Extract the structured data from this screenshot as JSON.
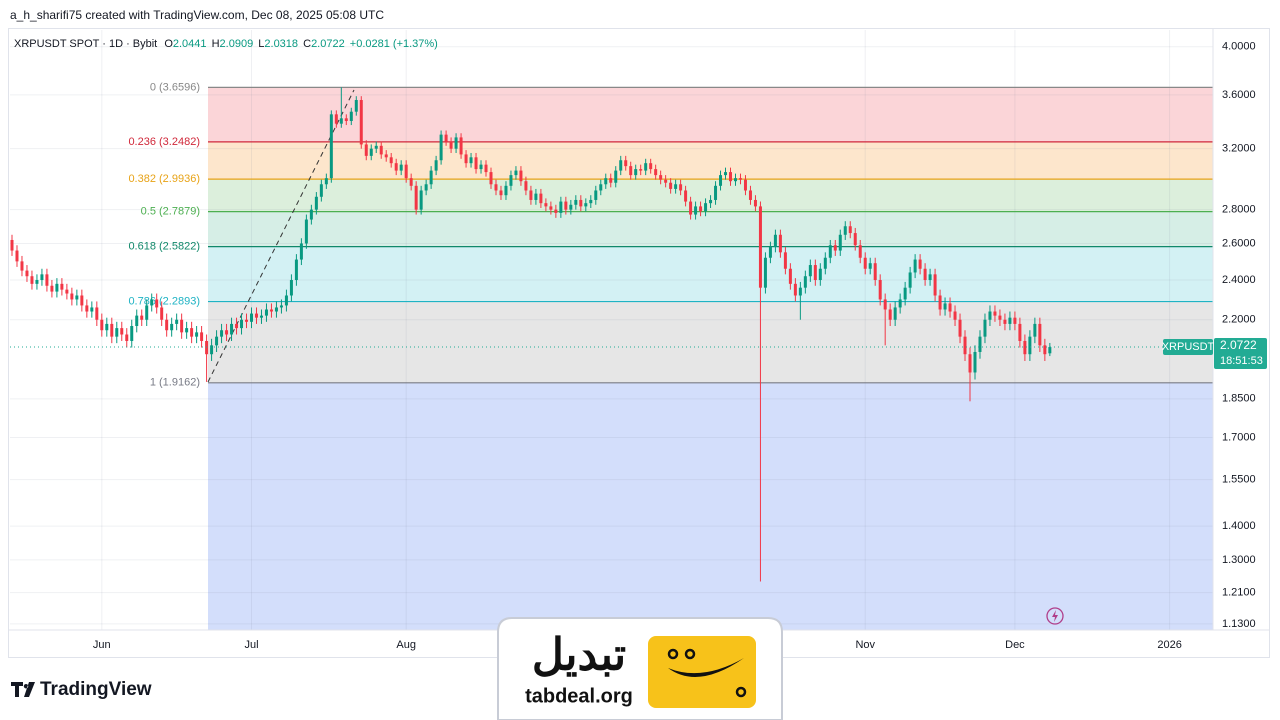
{
  "header": {
    "attribution": "a_h_sharifi75 created with TradingView.com, Dec 08, 2025 05:08 UTC"
  },
  "brand": "TradingView",
  "watermark": {
    "name": "تبدیل",
    "site": "tabdeal.org"
  },
  "chart_data": {
    "type": "candlestick",
    "title": "XRPUSDT SPOT · 1D · Bybit",
    "ohlc_labels": [
      "O",
      "H",
      "L",
      "C"
    ],
    "change": "+0.0281 (+1.37%)",
    "symbol_tag": "XRPUSDT",
    "countdown": "18:51:53",
    "up_color": "#089981",
    "down_color": "#f23645",
    "log_scale": true,
    "grid": true,
    "ylim": [
      1.115,
      4.15
    ],
    "yticks": [
      {
        "value": 4.0,
        "label": "4.0000"
      },
      {
        "value": 3.6,
        "label": "3.6000"
      },
      {
        "value": 3.2,
        "label": "3.2000"
      },
      {
        "value": 2.8,
        "label": "2.8000"
      },
      {
        "value": 2.6,
        "label": "2.6000"
      },
      {
        "value": 2.4,
        "label": "2.4000"
      },
      {
        "value": 2.2,
        "label": "2.2000"
      },
      {
        "value": 1.85,
        "label": "1.8500"
      },
      {
        "value": 1.7,
        "label": "1.7000"
      },
      {
        "value": 1.55,
        "label": "1.5500"
      },
      {
        "value": 1.4,
        "label": "1.4000"
      },
      {
        "value": 1.3,
        "label": "1.3000"
      },
      {
        "value": 1.21,
        "label": "1.2100"
      },
      {
        "value": 1.13,
        "label": "1.1300"
      }
    ],
    "xlim": [
      -0.4,
      240.7
    ],
    "xticks": [
      {
        "value": 18,
        "label": "Jun"
      },
      {
        "value": 48,
        "label": "Jul"
      },
      {
        "value": 79,
        "label": "Aug"
      },
      {
        "value": 171,
        "label": "Nov"
      },
      {
        "value": 201,
        "label": "Dec"
      },
      {
        "value": 232,
        "label": "2026"
      }
    ],
    "fib_levels": [
      {
        "value": 3.6596,
        "label": "0 (3.6596)",
        "line_color": "#888888",
        "fill": null
      },
      {
        "value": 3.2482,
        "label": "0.236 (3.2482)",
        "line_color": "#d0283a",
        "fill": "#fbd5d8"
      },
      {
        "value": 2.9936,
        "label": "0.382 (2.9936)",
        "line_color": "#e8a317",
        "fill": "#fde6cc"
      },
      {
        "value": 2.7879,
        "label": "0.5 (2.7879)",
        "line_color": "#4caf50",
        "fill": "#dcefdc"
      },
      {
        "value": 2.5822,
        "label": "0.618 (2.5822)",
        "line_color": "#11886a",
        "fill": "#d6eee6"
      },
      {
        "value": 2.2893,
        "label": "0.786 (2.2893)",
        "line_color": "#1fb3c4",
        "fill": "#d3f1f4"
      },
      {
        "value": 1.9162,
        "label": "1 (1.9162)",
        "line_color": "#787b86",
        "fill": "#e6e6e6"
      }
    ],
    "fib_extension_fill": "#d3defb",
    "open": [
      2.62,
      2.56,
      2.5,
      2.45,
      2.42,
      2.38,
      2.4,
      2.43,
      2.37,
      2.34,
      2.38,
      2.35,
      2.33,
      2.3,
      2.32,
      2.27,
      2.24,
      2.26,
      2.2,
      2.15,
      2.18,
      2.12,
      2.16,
      2.13,
      2.1,
      2.17,
      2.22,
      2.2,
      2.27,
      2.3,
      2.26,
      2.2,
      2.15,
      2.18,
      2.2,
      2.14,
      2.16,
      2.12,
      2.14,
      2.1,
      2.04,
      2.08,
      2.12,
      2.15,
      2.13,
      2.18,
      2.16,
      2.2,
      2.19,
      2.23,
      2.21,
      2.22,
      2.25,
      2.24,
      2.26,
      2.27,
      2.32,
      2.4,
      2.51,
      2.6,
      2.74,
      2.8,
      2.88,
      2.96,
      3.0,
      3.45,
      3.38,
      3.42,
      3.4,
      3.47,
      3.56,
      3.23,
      3.15,
      3.2,
      3.22,
      3.16,
      3.14,
      3.1,
      3.05,
      3.09,
      3.0,
      2.95,
      2.8,
      2.92,
      2.96,
      3.05,
      3.12,
      3.3,
      3.25,
      3.2,
      3.28,
      3.16,
      3.1,
      3.14,
      3.06,
      3.09,
      3.04,
      2.96,
      2.92,
      2.89,
      2.95,
      3.02,
      3.05,
      2.98,
      2.92,
      2.86,
      2.9,
      2.84,
      2.82,
      2.8,
      2.78,
      2.85,
      2.8,
      2.83,
      2.86,
      2.82,
      2.84,
      2.86,
      2.92,
      2.96,
      3.0,
      2.97,
      3.05,
      3.12,
      3.08,
      3.02,
      3.06,
      3.05,
      3.1,
      3.06,
      3.02,
      2.99,
      2.97,
      2.93,
      2.96,
      2.92,
      2.85,
      2.77,
      2.82,
      2.79,
      2.84,
      2.86,
      2.95,
      3.02,
      3.04,
      2.98,
      3.0,
      2.99,
      2.92,
      2.86,
      2.82,
      2.36,
      2.52,
      2.58,
      2.65,
      2.55,
      2.46,
      2.38,
      2.32,
      2.36,
      2.42,
      2.48,
      2.4,
      2.46,
      2.52,
      2.59,
      2.56,
      2.65,
      2.7,
      2.66,
      2.59,
      2.52,
      2.46,
      2.49,
      2.4,
      2.3,
      2.25,
      2.2,
      2.26,
      2.3,
      2.36,
      2.44,
      2.51,
      2.46,
      2.4,
      2.43,
      2.32,
      2.25,
      2.28,
      2.24,
      2.2,
      2.12,
      2.04,
      1.96,
      2.05,
      2.12,
      2.2,
      2.24,
      2.22,
      2.2,
      2.18,
      2.21,
      2.18,
      2.1,
      2.04,
      2.12,
      2.18,
      2.08,
      2.0441
    ],
    "high": [
      2.65,
      2.59,
      2.53,
      2.48,
      2.45,
      2.43,
      2.46,
      2.46,
      2.4,
      2.41,
      2.41,
      2.38,
      2.36,
      2.35,
      2.35,
      2.3,
      2.29,
      2.29,
      2.23,
      2.21,
      2.21,
      2.19,
      2.19,
      2.16,
      2.2,
      2.25,
      2.25,
      2.3,
      2.33,
      2.33,
      2.29,
      2.23,
      2.21,
      2.23,
      2.23,
      2.19,
      2.19,
      2.17,
      2.17,
      2.13,
      2.11,
      2.15,
      2.18,
      2.18,
      2.21,
      2.21,
      2.23,
      2.23,
      2.26,
      2.26,
      2.25,
      2.28,
      2.28,
      2.29,
      2.3,
      2.35,
      2.43,
      2.54,
      2.63,
      2.77,
      2.83,
      2.91,
      2.99,
      3.03,
      3.48,
      3.48,
      3.66,
      3.45,
      3.5,
      3.59,
      3.59,
      3.26,
      3.23,
      3.25,
      3.25,
      3.19,
      3.17,
      3.13,
      3.12,
      3.12,
      3.03,
      2.98,
      2.95,
      2.99,
      3.08,
      3.15,
      3.33,
      3.33,
      3.28,
      3.31,
      3.31,
      3.19,
      3.17,
      3.17,
      3.12,
      3.12,
      3.07,
      2.99,
      2.95,
      2.98,
      3.05,
      3.08,
      3.08,
      3.01,
      2.95,
      2.93,
      2.93,
      2.87,
      2.85,
      2.83,
      2.88,
      2.88,
      2.86,
      2.89,
      2.89,
      2.87,
      2.89,
      2.95,
      2.99,
      3.03,
      3.03,
      3.08,
      3.15,
      3.15,
      3.11,
      3.09,
      3.09,
      3.13,
      3.13,
      3.09,
      3.05,
      3.02,
      3.0,
      2.99,
      2.99,
      2.95,
      2.88,
      2.85,
      2.85,
      2.87,
      2.89,
      2.98,
      3.05,
      3.07,
      3.07,
      3.03,
      3.03,
      3.02,
      2.95,
      2.89,
      2.85,
      2.55,
      2.61,
      2.68,
      2.68,
      2.58,
      2.49,
      2.41,
      2.39,
      2.45,
      2.51,
      2.51,
      2.49,
      2.55,
      2.62,
      2.62,
      2.68,
      2.73,
      2.73,
      2.69,
      2.62,
      2.55,
      2.52,
      2.52,
      2.43,
      2.33,
      2.28,
      2.29,
      2.33,
      2.39,
      2.47,
      2.54,
      2.54,
      2.49,
      2.46,
      2.46,
      2.35,
      2.31,
      2.31,
      2.27,
      2.23,
      2.15,
      2.07,
      2.08,
      2.15,
      2.23,
      2.27,
      2.27,
      2.25,
      2.23,
      2.24,
      2.24,
      2.21,
      2.13,
      2.15,
      2.21,
      2.21,
      2.11,
      2.0909
    ],
    "low": [
      2.53,
      2.47,
      2.42,
      2.39,
      2.35,
      2.35,
      2.37,
      2.34,
      2.31,
      2.31,
      2.32,
      2.3,
      2.27,
      2.27,
      2.24,
      2.21,
      2.21,
      2.17,
      2.12,
      2.12,
      2.09,
      2.09,
      2.1,
      2.07,
      2.07,
      2.14,
      2.17,
      2.17,
      2.24,
      2.23,
      2.17,
      2.12,
      2.12,
      2.15,
      2.11,
      2.11,
      2.09,
      2.09,
      2.07,
      1.92,
      2.01,
      2.05,
      2.09,
      2.1,
      2.1,
      2.13,
      2.13,
      2.16,
      2.16,
      2.18,
      2.18,
      2.19,
      2.21,
      2.21,
      2.23,
      2.24,
      2.29,
      2.37,
      2.48,
      2.57,
      2.71,
      2.77,
      2.85,
      2.93,
      2.97,
      3.35,
      3.35,
      3.37,
      3.37,
      3.44,
      3.2,
      3.12,
      3.12,
      3.17,
      3.13,
      3.11,
      3.07,
      3.02,
      3.02,
      2.97,
      2.92,
      2.77,
      2.77,
      2.89,
      2.93,
      3.02,
      3.09,
      3.22,
      3.17,
      3.17,
      3.13,
      3.07,
      3.07,
      3.03,
      3.03,
      3.01,
      2.93,
      2.89,
      2.86,
      2.86,
      2.92,
      2.99,
      2.95,
      2.89,
      2.83,
      2.83,
      2.81,
      2.79,
      2.77,
      2.75,
      2.75,
      2.77,
      2.77,
      2.8,
      2.79,
      2.79,
      2.81,
      2.83,
      2.89,
      2.93,
      2.94,
      2.94,
      3.02,
      3.05,
      2.99,
      2.99,
      3.02,
      3.02,
      3.03,
      2.99,
      2.96,
      2.94,
      2.9,
      2.9,
      2.89,
      2.82,
      2.74,
      2.74,
      2.76,
      2.76,
      2.81,
      2.83,
      2.92,
      2.99,
      2.95,
      2.95,
      2.96,
      2.89,
      2.83,
      2.79,
      1.24,
      2.33,
      2.49,
      2.55,
      2.52,
      2.43,
      2.35,
      2.29,
      2.2,
      2.33,
      2.39,
      2.37,
      2.37,
      2.43,
      2.49,
      2.53,
      2.53,
      2.62,
      2.63,
      2.56,
      2.49,
      2.43,
      2.43,
      2.37,
      2.27,
      2.08,
      2.17,
      2.17,
      2.23,
      2.27,
      2.33,
      2.41,
      2.43,
      2.37,
      2.37,
      2.29,
      2.22,
      2.22,
      2.21,
      2.17,
      2.09,
      2.01,
      1.84,
      1.93,
      2.02,
      2.09,
      2.17,
      2.19,
      2.17,
      2.15,
      2.15,
      2.15,
      2.07,
      2.01,
      2.01,
      2.09,
      2.05,
      2.01,
      2.0318
    ],
    "close": [
      2.56,
      2.5,
      2.45,
      2.42,
      2.38,
      2.4,
      2.43,
      2.37,
      2.34,
      2.38,
      2.35,
      2.33,
      2.3,
      2.32,
      2.27,
      2.24,
      2.26,
      2.2,
      2.15,
      2.18,
      2.12,
      2.16,
      2.13,
      2.1,
      2.17,
      2.22,
      2.2,
      2.27,
      2.3,
      2.26,
      2.2,
      2.15,
      2.18,
      2.2,
      2.14,
      2.16,
      2.12,
      2.14,
      2.1,
      2.04,
      2.08,
      2.12,
      2.15,
      2.13,
      2.18,
      2.16,
      2.2,
      2.19,
      2.23,
      2.21,
      2.22,
      2.25,
      2.24,
      2.26,
      2.27,
      2.32,
      2.4,
      2.51,
      2.6,
      2.74,
      2.8,
      2.88,
      2.96,
      3.0,
      3.45,
      3.38,
      3.42,
      3.4,
      3.47,
      3.56,
      3.23,
      3.15,
      3.2,
      3.22,
      3.16,
      3.14,
      3.1,
      3.05,
      3.09,
      3.0,
      2.95,
      2.8,
      2.92,
      2.96,
      3.05,
      3.12,
      3.3,
      3.25,
      3.2,
      3.28,
      3.16,
      3.1,
      3.14,
      3.06,
      3.09,
      3.04,
      2.96,
      2.92,
      2.89,
      2.95,
      3.02,
      3.05,
      2.98,
      2.92,
      2.86,
      2.9,
      2.84,
      2.82,
      2.8,
      2.78,
      2.85,
      2.8,
      2.83,
      2.86,
      2.82,
      2.84,
      2.86,
      2.92,
      2.96,
      3.0,
      2.97,
      3.05,
      3.12,
      3.08,
      3.02,
      3.06,
      3.05,
      3.1,
      3.06,
      3.02,
      2.99,
      2.97,
      2.93,
      2.96,
      2.92,
      2.85,
      2.77,
      2.82,
      2.79,
      2.84,
      2.86,
      2.95,
      3.02,
      3.04,
      2.98,
      3.0,
      2.99,
      2.92,
      2.86,
      2.82,
      2.36,
      2.52,
      2.58,
      2.65,
      2.55,
      2.46,
      2.38,
      2.32,
      2.36,
      2.42,
      2.48,
      2.4,
      2.46,
      2.52,
      2.59,
      2.56,
      2.65,
      2.7,
      2.66,
      2.59,
      2.52,
      2.46,
      2.49,
      2.4,
      2.3,
      2.25,
      2.2,
      2.26,
      2.3,
      2.36,
      2.44,
      2.51,
      2.46,
      2.4,
      2.43,
      2.32,
      2.25,
      2.28,
      2.24,
      2.2,
      2.12,
      2.04,
      1.96,
      2.05,
      2.12,
      2.2,
      2.24,
      2.22,
      2.2,
      2.18,
      2.21,
      2.18,
      2.1,
      2.04,
      2.12,
      2.18,
      2.08,
      2.04,
      2.0722
    ]
  }
}
